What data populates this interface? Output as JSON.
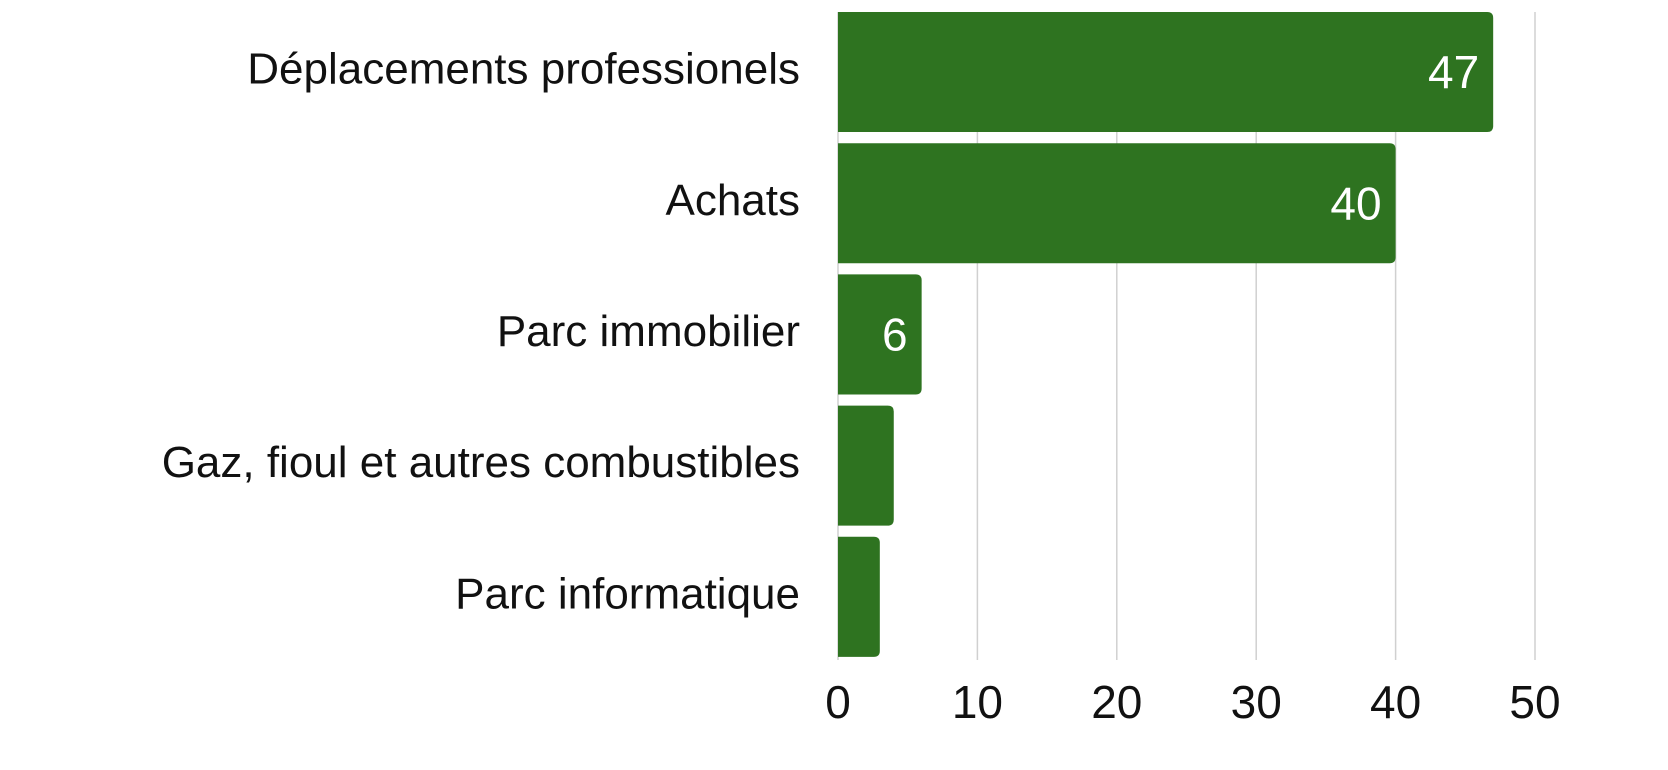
{
  "chart_data": {
    "type": "bar",
    "orientation": "horizontal",
    "categories": [
      "Déplacements professionels",
      "Achats",
      "Parc immobilier",
      "Gaz, fioul et autres combustibles",
      "Parc informatique"
    ],
    "values": [
      47,
      40,
      6,
      4,
      3
    ],
    "value_labels": [
      "47",
      "40",
      "6",
      null,
      null
    ],
    "color": "#2e7320",
    "xlim": [
      0,
      50
    ],
    "xticks": [
      0,
      10,
      20,
      30,
      40,
      50
    ],
    "grid": true
  }
}
